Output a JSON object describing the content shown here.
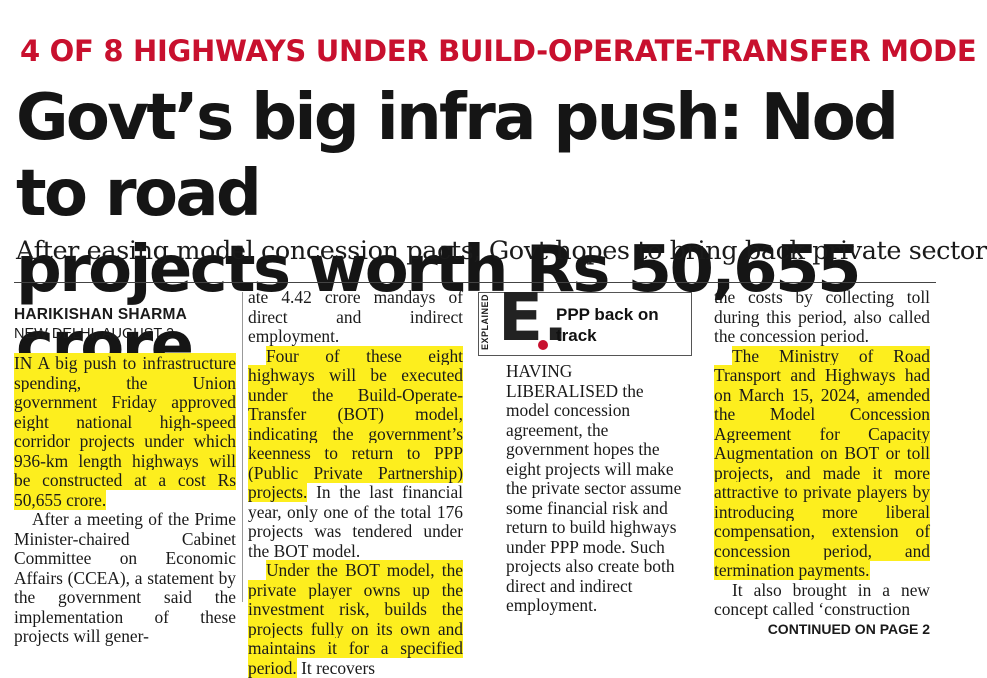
{
  "kicker": "4 OF 8 HIGHWAYS UNDER BUILD-OPERATE-TRANSFER MODE",
  "headline": {
    "line1": "Govt’s big infra push: Nod to road",
    "line2": "projects worth Rs 50,655 crore"
  },
  "subhead": "After easing model concession pacts, Govt hopes to bring back private sector",
  "byline": {
    "author": "HARIKISHAN SHARMA",
    "dateline": "NEW DELHI, AUGUST 2"
  },
  "col1": {
    "p1_hl": "IN A big push to infrastructure spending, the Union government Friday approved eight national high-speed corridor projects under which 936-km length highways will be constructed at a cost Rs 50,655 crore.",
    "p2": "After a meeting of the Prime Minister-chaired Cabinet Committee on Economic Affairs (CCEA), a statement by the government said the implementation of these projects will gener-"
  },
  "col2": {
    "p1": "ate 4.42 crore mandays of direct and indirect employment.",
    "p2_hl": "Four of these eight highways will be executed under the Build-Operate-Transfer (BOT) model, indicating the government’s keenness to return to PPP (Public Private Partnership) projects.",
    "p2_rest": " In the last financial year, only one of the total 176 projects was tendered under the BOT model.",
    "p3_hl": "Under the BOT model, the private player owns up the investment risk, builds the projects fully on its own and maintains it for a specified period.",
    "p3_rest": " It recovers"
  },
  "explained": {
    "label": "EXPLAINED",
    "letter": "E.",
    "title": "PPP back on track",
    "body": "HAVING LIBERALISED the model concession agreement, the government hopes the eight projects will make the private sector assume some financial risk and return to build highways under PPP mode. Such projects also create both direct and indirect employment."
  },
  "col4": {
    "p1": "the costs by collecting toll during this period, also called the concession period.",
    "p2_hl": "The Ministry of Road Transport and Highways had on March 15, 2024, amended the Model Concession Agreement for Capacity Augmentation on BOT or toll projects, and made it more attractive to private players by introducing more liberal compensation, extension of concession period, and termination payments.",
    "p3": "It also brought in a new concept called ‘construction",
    "continued": "CONTINUED ON PAGE 2"
  },
  "colors": {
    "kicker": "#c8102e",
    "highlight": "#fdee1e",
    "accent_dot": "#c8102e"
  }
}
